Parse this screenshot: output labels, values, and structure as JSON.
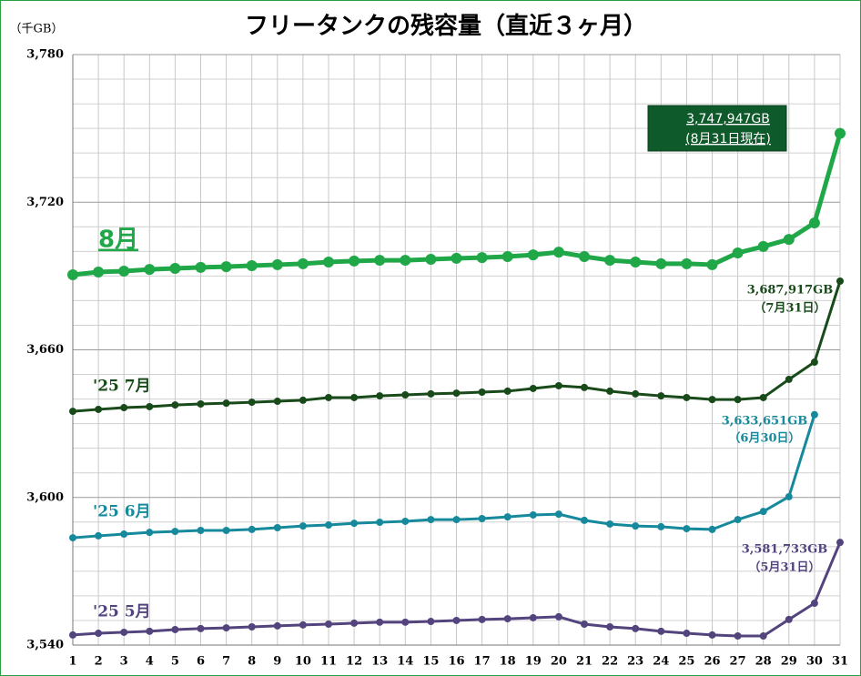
{
  "chart_data": {
    "type": "line",
    "title": "フリータンクの残容量（直近３ヶ月）",
    "y_label": "（千GB）",
    "x": [
      1,
      2,
      3,
      4,
      5,
      6,
      7,
      8,
      9,
      10,
      11,
      12,
      13,
      14,
      15,
      16,
      17,
      18,
      19,
      20,
      21,
      22,
      23,
      24,
      25,
      26,
      27,
      28,
      29,
      30,
      31
    ],
    "xlim": [
      1,
      31
    ],
    "xticks": [
      1,
      2,
      3,
      4,
      5,
      6,
      7,
      8,
      9,
      10,
      11,
      12,
      13,
      14,
      15,
      16,
      17,
      18,
      19,
      20,
      21,
      22,
      23,
      24,
      25,
      26,
      27,
      28,
      29,
      30,
      31
    ],
    "ylim": [
      3540,
      3780
    ],
    "yticks": [
      {
        "value": 3540,
        "label": "3,540"
      },
      {
        "value": 3600,
        "label": "3,600"
      },
      {
        "value": 3660,
        "label": "3,660"
      },
      {
        "value": 3720,
        "label": "3,720"
      },
      {
        "value": 3780,
        "label": "3,780"
      }
    ],
    "y_minor_ticks": [
      3550,
      3560,
      3570,
      3580,
      3590,
      3610,
      3620,
      3630,
      3640,
      3650,
      3670,
      3680,
      3690,
      3700,
      3710,
      3730,
      3740,
      3750,
      3760,
      3770
    ],
    "grid": true,
    "series": [
      {
        "name": "8月",
        "color": "#1fa748",
        "values": [
          3690.5,
          3691.6,
          3692,
          3692.7,
          3693.1,
          3693.5,
          3693.8,
          3694.2,
          3694.6,
          3695,
          3695.7,
          3696.1,
          3696.4,
          3696.4,
          3696.8,
          3697.2,
          3697.5,
          3697.9,
          3698.6,
          3699.7,
          3697.9,
          3696.4,
          3695.7,
          3695,
          3695,
          3694.6,
          3699.4,
          3702,
          3704.9,
          3711.6,
          3747.947
        ]
      },
      {
        "name": "'25 7月",
        "color": "#184a1a",
        "values": [
          3635,
          3635.8,
          3636.5,
          3636.9,
          3637.6,
          3638,
          3638.3,
          3638.7,
          3639.1,
          3639.5,
          3640.6,
          3640.6,
          3641.3,
          3641.7,
          3642.1,
          3642.4,
          3642.8,
          3643.2,
          3644.3,
          3645.4,
          3644.7,
          3643.2,
          3642.1,
          3641.3,
          3640.6,
          3639.8,
          3639.8,
          3640.6,
          3648,
          3655,
          3687.917
        ]
      },
      {
        "name": "'25 6月",
        "color": "#168a9c",
        "values": [
          3583.6,
          3584.4,
          3585.1,
          3585.8,
          3586.2,
          3586.6,
          3586.6,
          3587,
          3587.7,
          3588.4,
          3588.8,
          3589.5,
          3589.9,
          3590.3,
          3591,
          3591,
          3591.4,
          3592.1,
          3592.9,
          3593.2,
          3590.7,
          3589.2,
          3588.4,
          3588.1,
          3587.3,
          3587,
          3591,
          3594.3,
          3600.3,
          3633.651,
          null
        ]
      },
      {
        "name": "'25 5月",
        "color": "#54447e",
        "values": [
          3544.1,
          3544.8,
          3545.2,
          3545.6,
          3546.3,
          3546.7,
          3547,
          3547.4,
          3547.8,
          3548.2,
          3548.5,
          3548.9,
          3549.3,
          3549.3,
          3549.6,
          3550,
          3550.4,
          3550.7,
          3551.1,
          3551.5,
          3548.5,
          3547.4,
          3546.7,
          3545.6,
          3544.8,
          3544.1,
          3543.7,
          3543.7,
          3550.4,
          3557,
          3581.733
        ]
      }
    ],
    "annotations": [
      {
        "lines": [
          "3,747,947GB",
          "(8月31日現在)"
        ]
      },
      {
        "lines": [
          "3,687,917GB",
          "（7月31日）"
        ]
      },
      {
        "lines": [
          "3,633,651GB",
          "（6月30日）"
        ]
      },
      {
        "lines": [
          "3,581,733GB",
          "（5月31日）"
        ]
      }
    ]
  }
}
